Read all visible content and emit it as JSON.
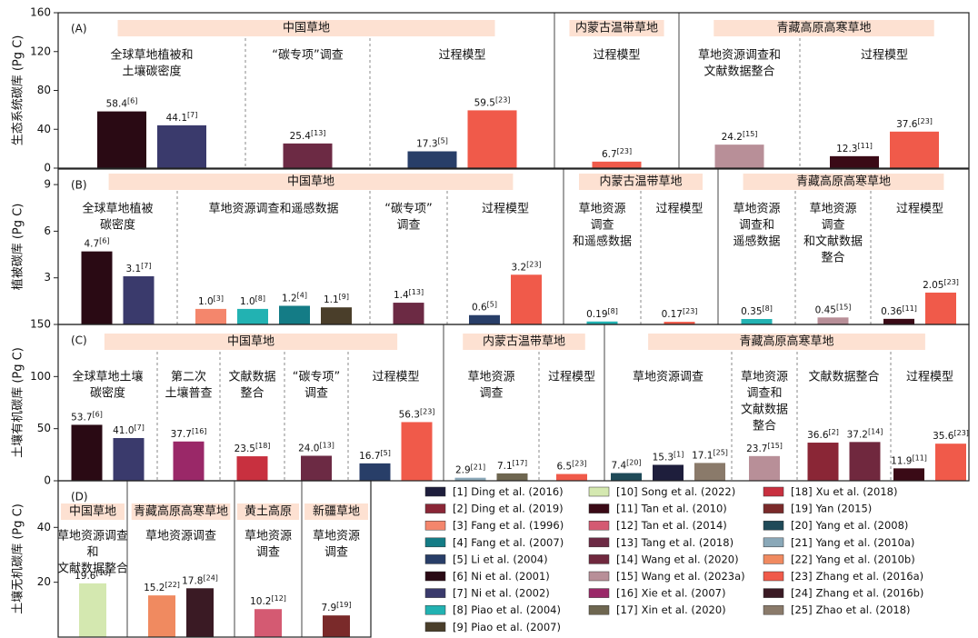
{
  "chart_data": [
    {
      "type": "bar",
      "letter": "(A)",
      "ylabel": "生态系统碳库 (Pg C)",
      "ylim": [
        0,
        160
      ],
      "yticks": [
        0,
        40,
        80,
        120,
        160
      ],
      "groups": [
        {
          "name": "中国草地",
          "sections": [
            {
              "method": [
                "全球草地植被和",
                "土壤碳密度"
              ],
              "bars": [
                {
                  "value": 58.4,
                  "ref": "[6]"
                },
                {
                  "value": 44.1,
                  "ref": "[7]"
                }
              ]
            },
            {
              "method": [
                "“碳专项”调查"
              ],
              "bars": [
                {
                  "value": 25.4,
                  "ref": "[13]"
                }
              ]
            },
            {
              "method": [
                "过程模型"
              ],
              "bars": [
                {
                  "value": 17.3,
                  "ref": "[5]"
                },
                {
                  "value": 59.5,
                  "ref": "[23]"
                }
              ]
            }
          ]
        },
        {
          "name": "内蒙古温带草地",
          "sections": [
            {
              "method": [
                "过程模型"
              ],
              "bars": [
                {
                  "value": 6.7,
                  "ref": "[23]"
                }
              ]
            }
          ]
        },
        {
          "name": "青藏高原高寒草地",
          "sections": [
            {
              "method": [
                "草地资源调查和",
                "文献数据整合"
              ],
              "bars": [
                {
                  "value": 24.2,
                  "ref": "[15]"
                }
              ]
            },
            {
              "method": [
                "过程模型"
              ],
              "bars": [
                {
                  "value": 12.3,
                  "ref": "[11]"
                },
                {
                  "value": 37.6,
                  "ref": "[23]"
                }
              ]
            }
          ]
        }
      ]
    },
    {
      "type": "bar",
      "letter": "(B)",
      "ylabel": "植被碳库 (Pg C)",
      "ylim": [
        0,
        10
      ],
      "yticks": [
        3,
        6,
        9
      ],
      "groups": [
        {
          "name": "中国草地",
          "sections": [
            {
              "method": [
                "全球草地植被",
                "碳密度"
              ],
              "bars": [
                {
                  "value": 4.7,
                  "ref": "[6]"
                },
                {
                  "value": 3.1,
                  "ref": "[7]"
                }
              ]
            },
            {
              "method": [
                "草地资源调查和遥感数据"
              ],
              "bars": [
                {
                  "value": 1.0,
                  "label": "1.0",
                  "ref": "[3]"
                },
                {
                  "value": 1.0,
                  "label": "1.0",
                  "ref": "[8]"
                },
                {
                  "value": 1.2,
                  "ref": "[4]"
                },
                {
                  "value": 1.1,
                  "ref": "[9]"
                }
              ]
            },
            {
              "method": [
                "“碳专项”",
                "调查"
              ],
              "bars": [
                {
                  "value": 1.4,
                  "ref": "[13]"
                }
              ]
            },
            {
              "method": [
                "过程模型"
              ],
              "bars": [
                {
                  "value": 0.6,
                  "ref": "[5]"
                },
                {
                  "value": 3.2,
                  "ref": "[23]"
                }
              ]
            }
          ]
        },
        {
          "name": "内蒙古温带草地",
          "sections": [
            {
              "method": [
                "草地资源",
                "调查",
                "和遥感数据"
              ],
              "bars": [
                {
                  "value": 0.19,
                  "ref": "[8]"
                }
              ]
            },
            {
              "method": [
                "过程模型"
              ],
              "bars": [
                {
                  "value": 0.17,
                  "ref": "[23]"
                }
              ]
            }
          ]
        },
        {
          "name": "青藏高原高寒草地",
          "sections": [
            {
              "method": [
                "草地资源",
                "调查和",
                "遥感数据"
              ],
              "bars": [
                {
                  "value": 0.35,
                  "ref": "[8]"
                }
              ]
            },
            {
              "method": [
                "草地资源",
                "调查",
                "和文献数据",
                "整合"
              ],
              "bars": [
                {
                  "value": 0.45,
                  "ref": "[15]"
                }
              ]
            },
            {
              "method": [
                "过程模型"
              ],
              "bars": [
                {
                  "value": 0.36,
                  "ref": "[11]"
                },
                {
                  "value": 2.05,
                  "ref": "[23]"
                }
              ]
            }
          ]
        }
      ]
    },
    {
      "type": "bar",
      "letter": "(C)",
      "ylabel": "土壤有机碳库 (Pg C)",
      "ylim": [
        0,
        150
      ],
      "yticks": [
        0,
        50,
        100,
        150
      ],
      "groups": [
        {
          "name": "中国草地",
          "sections": [
            {
              "method": [
                "全球草地土壤",
                "碳密度"
              ],
              "bars": [
                {
                  "value": 53.7,
                  "ref": "[6]"
                },
                {
                  "value": 41.0,
                  "label": "41.0",
                  "ref": "[7]"
                }
              ]
            },
            {
              "method": [
                "第二次",
                "土壤普查"
              ],
              "bars": [
                {
                  "value": 37.7,
                  "ref": "[16]"
                }
              ]
            },
            {
              "method": [
                "文献数据",
                "整合"
              ],
              "bars": [
                {
                  "value": 23.5,
                  "ref": "[18]"
                }
              ]
            },
            {
              "method": [
                "“碳专项”",
                "调查"
              ],
              "bars": [
                {
                  "value": 24.0,
                  "label": "24.0",
                  "ref": "[13]"
                }
              ]
            },
            {
              "method": [
                "过程模型"
              ],
              "bars": [
                {
                  "value": 16.7,
                  "ref": "[5]"
                },
                {
                  "value": 56.3,
                  "ref": "[23]"
                }
              ]
            }
          ]
        },
        {
          "name": "内蒙古温带草地",
          "sections": [
            {
              "method": [
                "草地资源",
                "调查"
              ],
              "bars": [
                {
                  "value": 2.9,
                  "ref": "[21]"
                },
                {
                  "value": 7.1,
                  "ref": "[17]"
                }
              ]
            },
            {
              "method": [
                "过程模型"
              ],
              "bars": [
                {
                  "value": 6.5,
                  "ref": "[23]"
                }
              ]
            }
          ]
        },
        {
          "name": "青藏高原高寒草地",
          "sections": [
            {
              "method": [
                "草地资源调查"
              ],
              "bars": [
                {
                  "value": 7.4,
                  "ref": "[20]"
                },
                {
                  "value": 15.3,
                  "ref": "[1]"
                },
                {
                  "value": 17.1,
                  "ref": "[25]"
                }
              ]
            },
            {
              "method": [
                "草地资源",
                "调查和",
                "文献数据",
                "整合"
              ],
              "bars": [
                {
                  "value": 23.7,
                  "ref": "[15]"
                }
              ]
            },
            {
              "method": [
                "文献数据整合"
              ],
              "bars": [
                {
                  "value": 36.6,
                  "ref": "[2]"
                },
                {
                  "value": 37.2,
                  "ref": "[14]"
                }
              ]
            },
            {
              "method": [
                "过程模型"
              ],
              "bars": [
                {
                  "value": 11.9,
                  "ref": "[11]"
                },
                {
                  "value": 35.6,
                  "ref": "[23]"
                }
              ]
            }
          ]
        }
      ]
    },
    {
      "type": "bar",
      "letter": "(D)",
      "ylabel": "土壤无机碳库 (Pg C)",
      "ylim": [
        0,
        57
      ],
      "yticks": [
        20,
        40
      ],
      "groups": [
        {
          "name": "中国草地",
          "sections": [
            {
              "method": [
                "草地资源调查",
                "和",
                "文献数据整合"
              ],
              "bars": [
                {
                  "value": 19.6,
                  "ref": "[10]"
                }
              ]
            }
          ]
        },
        {
          "name": "青藏高原高寒草地",
          "sections": [
            {
              "method": [
                "草地资源调查"
              ],
              "bars": [
                {
                  "value": 15.2,
                  "ref": "[22]"
                },
                {
                  "value": 17.8,
                  "ref": "[24]"
                }
              ]
            }
          ]
        },
        {
          "name": "黄土高原",
          "sections": [
            {
              "method": [
                "草地资源",
                "调查"
              ],
              "bars": [
                {
                  "value": 10.2,
                  "ref": "[12]"
                }
              ]
            }
          ]
        },
        {
          "name": "新疆草地",
          "sections": [
            {
              "method": [
                "草地资源",
                "调查"
              ],
              "bars": [
                {
                  "value": 7.9,
                  "ref": "[19]"
                }
              ]
            }
          ]
        }
      ]
    }
  ],
  "legend": [
    {
      "ref": "[1]",
      "name": "Ding et al. (2016)",
      "color": "#1e1e3c"
    },
    {
      "ref": "[2]",
      "name": "Ding et al. (2019)",
      "color": "#8a2636"
    },
    {
      "ref": "[3]",
      "name": "Fang et al. (1996)",
      "color": "#f4866c"
    },
    {
      "ref": "[4]",
      "name": "Fang et al. (2007)",
      "color": "#147c86"
    },
    {
      "ref": "[5]",
      "name": "Li et al. (2004)",
      "color": "#283e68"
    },
    {
      "ref": "[6]",
      "name": "Ni et al. (2001)",
      "color": "#2a0a14"
    },
    {
      "ref": "[7]",
      "name": "Ni et al. (2002)",
      "color": "#3a3a6c"
    },
    {
      "ref": "[8]",
      "name": "Piao et al. (2004)",
      "color": "#22b2b2"
    },
    {
      "ref": "[9]",
      "name": "Piao et al. (2007)",
      "color": "#4a3e2a"
    },
    {
      "ref": "[10]",
      "name": "Song et al. (2022)",
      "color": "#d4e8b0"
    },
    {
      "ref": "[11]",
      "name": "Tan et al. (2010)",
      "color": "#3a0a16"
    },
    {
      "ref": "[12]",
      "name": "Tan et al. (2014)",
      "color": "#d45a72"
    },
    {
      "ref": "[13]",
      "name": "Tang et al. (2018)",
      "color": "#6c2a44"
    },
    {
      "ref": "[14]",
      "name": "Wang et al. (2020)",
      "color": "#70283e"
    },
    {
      "ref": "[15]",
      "name": "Wang et al. (2023a)",
      "color": "#b88f98"
    },
    {
      "ref": "[16]",
      "name": "Xie et al. (2007)",
      "color": "#9a2868"
    },
    {
      "ref": "[17]",
      "name": "Xin et al. (2020)",
      "color": "#6e6650"
    },
    {
      "ref": "[18]",
      "name": "Xu et al. (2018)",
      "color": "#c8303f"
    },
    {
      "ref": "[19]",
      "name": "Yan (2015)",
      "color": "#7a2a2a"
    },
    {
      "ref": "[20]",
      "name": "Yang et al. (2008)",
      "color": "#1f4a58"
    },
    {
      "ref": "[21]",
      "name": "Yang et al. (2010a)",
      "color": "#8aa8b8"
    },
    {
      "ref": "[22]",
      "name": "Yang et al. (2010b)",
      "color": "#f08a60"
    },
    {
      "ref": "[23]",
      "name": "Zhang et al. (2016a)",
      "color": "#f05a4a"
    },
    {
      "ref": "[24]",
      "name": "Zhang et al. (2016b)",
      "color": "#3a1a24"
    },
    {
      "ref": "[25]",
      "name": "Zhao et al. (2018)",
      "color": "#8a7a6a"
    }
  ]
}
